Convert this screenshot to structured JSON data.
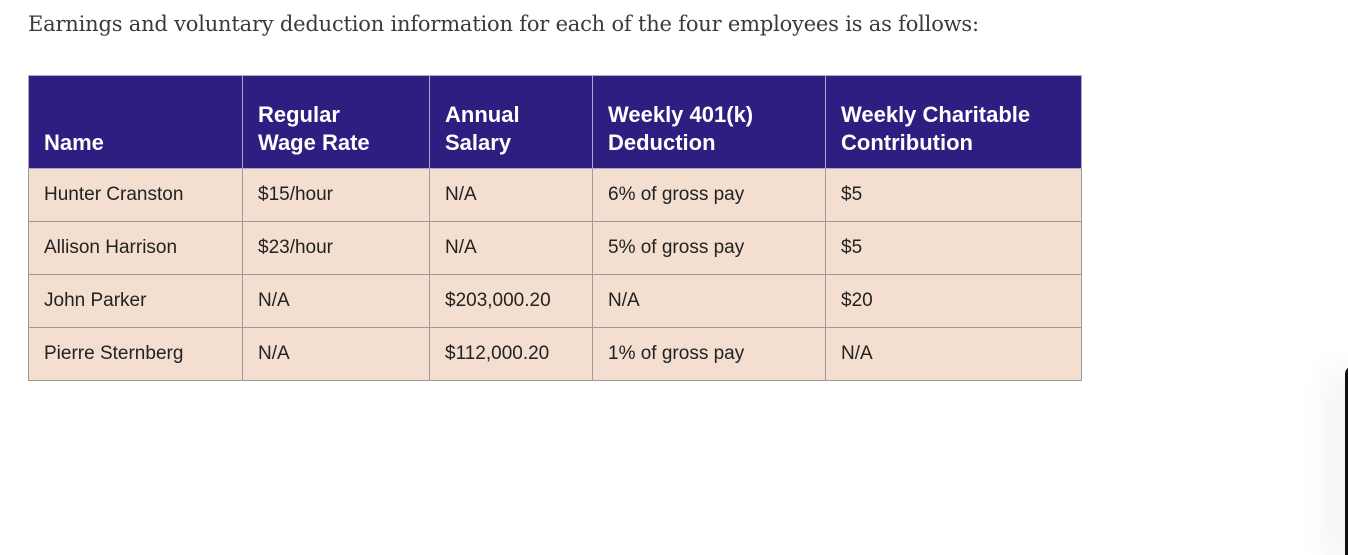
{
  "intro_text": "Earnings and voluntary deduction information for each of the four employees is as follows:",
  "table": {
    "headers": {
      "name": "Name",
      "regular_wage_rate": [
        "Regular",
        "Wage Rate"
      ],
      "annual_salary": [
        "Annual",
        "Salary"
      ],
      "weekly_401k": [
        "Weekly 401(k)",
        "Deduction"
      ],
      "weekly_charitable": [
        "Weekly Charitable",
        "Contribution"
      ]
    },
    "rows": [
      [
        "Hunter Cranston",
        "$15/hour",
        "N/A",
        "6% of gross pay",
        "$5"
      ],
      [
        "Allison Harrison",
        "$23/hour",
        "N/A",
        "5% of gross pay",
        "$5"
      ],
      [
        "John Parker",
        "N/A",
        "$203,000.20",
        "N/A",
        "$20"
      ],
      [
        "Pierre Sternberg",
        "N/A",
        "$112,000.20",
        "1% of gross pay",
        "N/A"
      ]
    ]
  },
  "colors": {
    "header_bg": "#2e1e82",
    "header_text": "#ffffff",
    "row_bg": "#f3ded0",
    "border": "#9c9a9a"
  }
}
